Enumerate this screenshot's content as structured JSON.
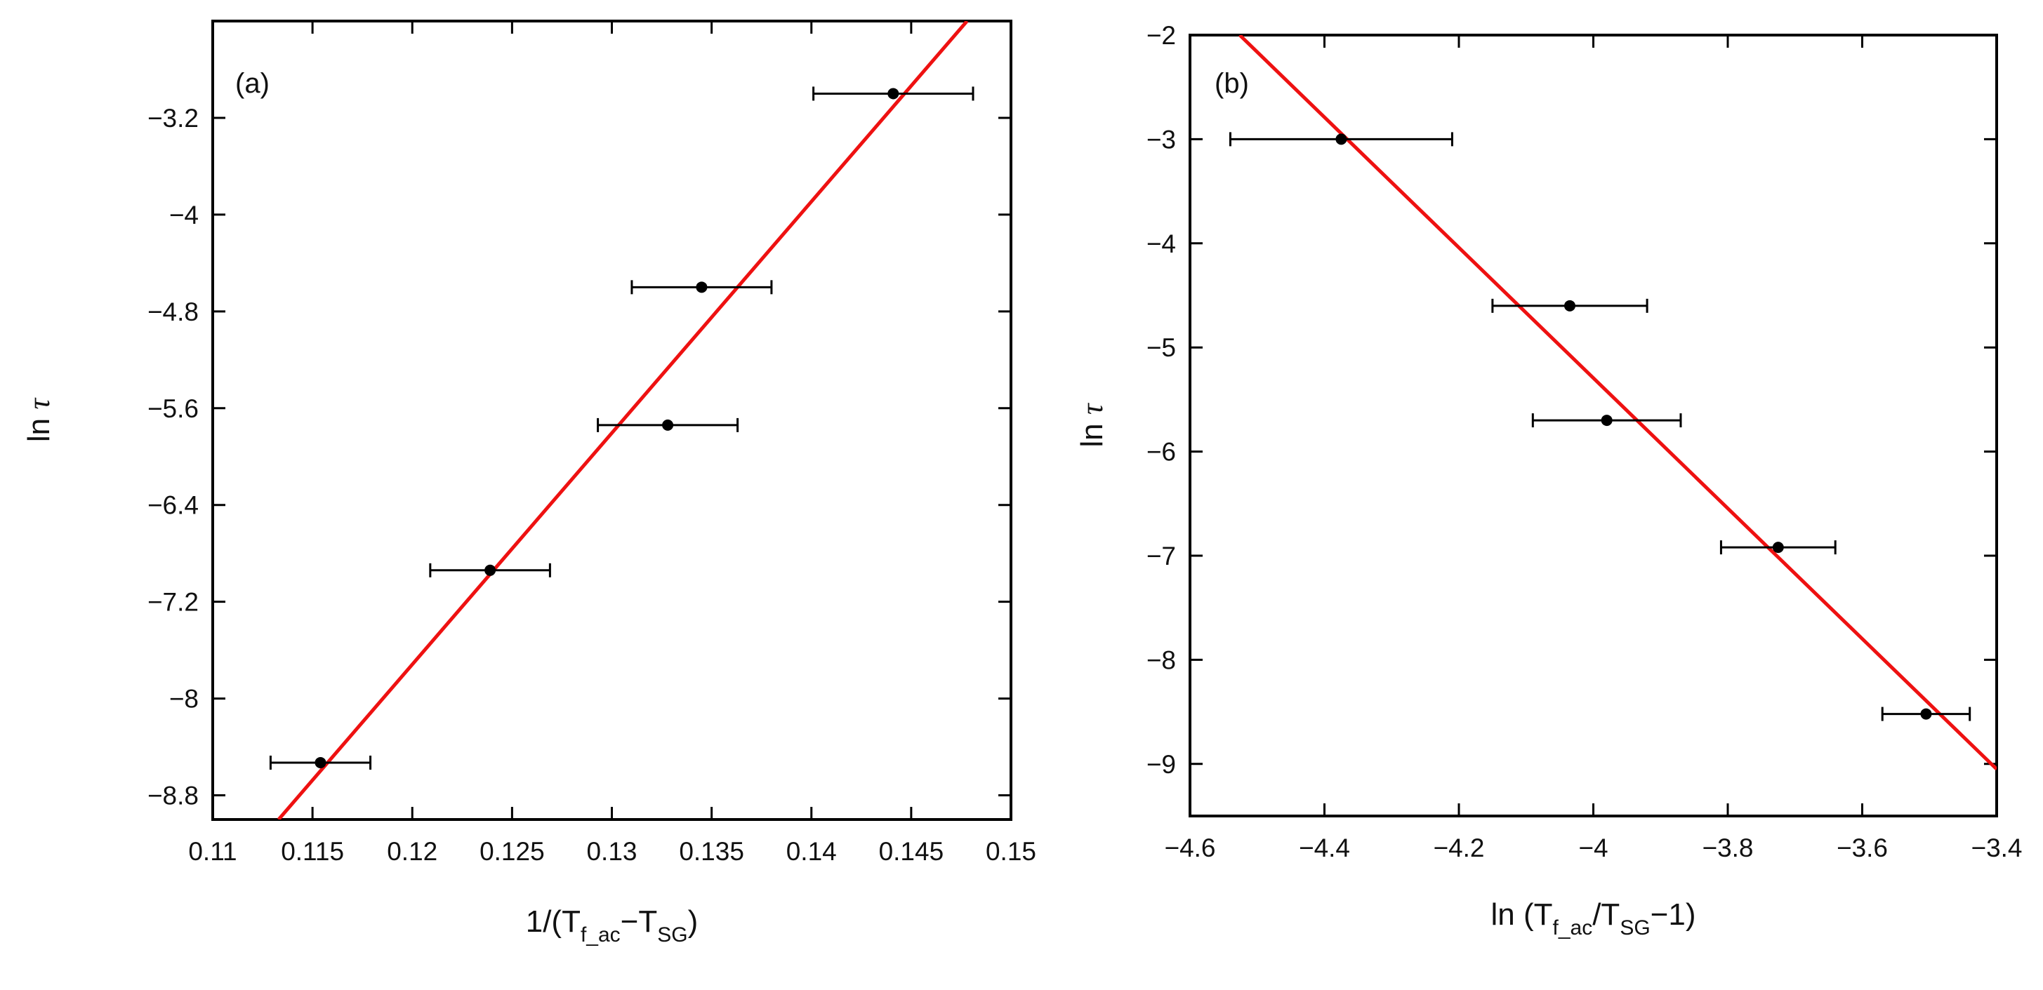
{
  "chart_data": [
    {
      "type": "scatter",
      "panel_label": "(a)",
      "xlabel": {
        "prefix": "1/(T",
        "sub1": "f_ac",
        "mid": "−T",
        "sub2": "SG",
        "suffix": ")"
      },
      "ylabel": {
        "text": "ln ",
        "sym": "τ"
      },
      "xlim": [
        0.11,
        0.15
      ],
      "ylim": [
        -9.0,
        -2.4
      ],
      "xticks": [
        0.11,
        0.115,
        0.12,
        0.125,
        0.13,
        0.135,
        0.14,
        0.145,
        0.15
      ],
      "xtick_labels": [
        "0.11",
        "0.115",
        "0.12",
        "0.125",
        "0.13",
        "0.135",
        "0.14",
        "0.145",
        "0.15"
      ],
      "yticks": [
        -8.8,
        -8.0,
        -7.2,
        -6.4,
        -5.6,
        -4.8,
        -4.0,
        -3.2
      ],
      "ytick_labels": [
        "−8.8",
        "−8",
        "−7.2",
        "−6.4",
        "−5.6",
        "−4.8",
        "−4",
        "−3.2"
      ],
      "points": [
        {
          "x": 0.1154,
          "y": -8.53,
          "xerr": 0.0025
        },
        {
          "x": 0.1239,
          "y": -6.94,
          "xerr": 0.003
        },
        {
          "x": 0.1328,
          "y": -5.74,
          "xerr": 0.0035
        },
        {
          "x": 0.1345,
          "y": -4.6,
          "xerr": 0.0035
        },
        {
          "x": 0.1441,
          "y": -3.0,
          "xerr": 0.004
        }
      ],
      "fit_line": {
        "x": [
          0.1133,
          0.1478
        ],
        "y": [
          -9.0,
          -2.4
        ]
      }
    },
    {
      "type": "scatter",
      "panel_label": "(b)",
      "xlabel": {
        "prefix": "ln (T",
        "sub1": "f_ac",
        "mid": "/T",
        "sub2": "SG",
        "suffix": "−1)"
      },
      "ylabel": {
        "text": "ln ",
        "sym": "τ"
      },
      "xlim": [
        -4.6,
        -3.4
      ],
      "ylim": [
        -9.5,
        -2.0
      ],
      "xticks": [
        -4.6,
        -4.4,
        -4.2,
        -4.0,
        -3.8,
        -3.6,
        -3.4
      ],
      "xtick_labels": [
        "−4.6",
        "−4.4",
        "−4.2",
        "−4",
        "−3.8",
        "−3.6",
        "−3.4"
      ],
      "yticks": [
        -9,
        -8,
        -7,
        -6,
        -5,
        -4,
        -3,
        -2
      ],
      "ytick_labels": [
        "−9",
        "−8",
        "−7",
        "−6",
        "−5",
        "−4",
        "−3",
        "−2"
      ],
      "points": [
        {
          "x": -4.375,
          "y": -3.0,
          "xerr": 0.165
        },
        {
          "x": -4.035,
          "y": -4.6,
          "xerr": 0.115
        },
        {
          "x": -3.98,
          "y": -5.7,
          "xerr": 0.11
        },
        {
          "x": -3.725,
          "y": -6.92,
          "xerr": 0.085
        },
        {
          "x": -3.505,
          "y": -8.52,
          "xerr": 0.065
        }
      ],
      "fit_line": {
        "x": [
          -4.526,
          -3.4
        ],
        "y": [
          -2.0,
          -9.05
        ]
      }
    }
  ]
}
